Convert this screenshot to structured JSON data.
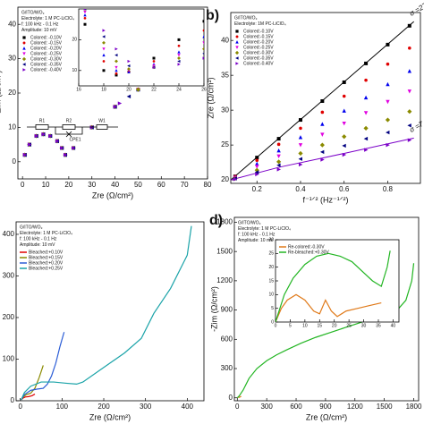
{
  "chart_data": [
    {
      "type": "scatter",
      "xlabel": "Zre (Ω/cm²)",
      "ylabel": "-Zim (Ω/cm²)",
      "xlim": [
        -2,
        80
      ],
      "xticks": [
        0,
        10,
        20,
        30,
        40,
        50,
        60,
        70,
        80
      ],
      "ylim": [
        -5,
        45
      ],
      "yticks": [
        0,
        10,
        20,
        30,
        40
      ],
      "notes": [
        "G/ITO/WO₃",
        "Electrolyte: 1 M PC-LiClO₄",
        "f: 100 kHz - 0.1 Hz",
        "Amplitude: 10 mV"
      ],
      "legend": "upper left",
      "circuit_labels": [
        "R1",
        "R2",
        "CPE1",
        "W1"
      ],
      "series": [
        {
          "name": "Colored: -0.10V",
          "color": "#000000",
          "marker": "square",
          "x": [
            1,
            3,
            6,
            9,
            12,
            15,
            17,
            18.5,
            22,
            30,
            40,
            50,
            60,
            70,
            75
          ],
          "values": [
            2,
            5,
            7.5,
            8,
            7.5,
            6,
            4,
            2,
            4,
            10,
            16,
            21,
            27,
            33,
            35
          ]
        },
        {
          "name": "Colored: -0.15V",
          "color": "#e00000",
          "marker": "circle",
          "x": [
            1,
            3,
            6,
            9,
            12,
            15,
            17,
            18.5,
            22,
            30,
            40,
            50,
            60,
            65
          ],
          "values": [
            2,
            5,
            7.5,
            8,
            7.5,
            6,
            4,
            2,
            4,
            10,
            16,
            21,
            27,
            30
          ]
        },
        {
          "name": "Colored: -0.20V",
          "color": "#0000ee",
          "marker": "triangle-up",
          "x": [
            1,
            3,
            6,
            9,
            12,
            15,
            17,
            18.5,
            22,
            30,
            40,
            50,
            60
          ],
          "values": [
            2,
            5,
            7.5,
            8,
            7.5,
            6,
            4,
            2,
            4,
            10,
            16,
            21,
            26
          ]
        },
        {
          "name": "Colored: -0.25V",
          "color": "#e000e0",
          "marker": "triangle-down",
          "x": [
            1,
            3,
            6,
            9,
            12,
            15,
            17,
            18.5,
            22,
            30,
            40,
            50,
            55
          ],
          "values": [
            2,
            5,
            7.5,
            8,
            7.5,
            6,
            4,
            2,
            4,
            10,
            16,
            21,
            24
          ]
        },
        {
          "name": "Colored: -0.30V",
          "color": "#8a8a00",
          "marker": "diamond",
          "x": [
            1,
            3,
            6,
            9,
            12,
            15,
            17,
            18.5,
            22,
            30,
            40,
            50
          ],
          "values": [
            2,
            5,
            7.5,
            8,
            7.5,
            6,
            4,
            2,
            4,
            10,
            16,
            21
          ]
        },
        {
          "name": "Colored: -0.35V",
          "color": "#000080",
          "marker": "triangle-left",
          "x": [
            1,
            3,
            6,
            9,
            12,
            15,
            17,
            18.5,
            22,
            30,
            40,
            46
          ],
          "values": [
            2,
            5,
            7.5,
            8,
            7.5,
            6,
            4,
            2,
            4,
            10,
            16,
            19
          ]
        },
        {
          "name": "Colored: -0.40V",
          "color": "#7b00c8",
          "marker": "triangle-right",
          "x": [
            1,
            3,
            6,
            9,
            12,
            15,
            17,
            18.5,
            22,
            30,
            40,
            42
          ],
          "values": [
            2,
            5,
            7.5,
            8,
            7.5,
            6,
            4,
            2,
            4,
            10,
            16,
            17
          ]
        }
      ],
      "inset": {
        "type": "scatter",
        "xlim": [
          16,
          26
        ],
        "xticks": [
          16,
          18,
          20,
          22,
          24,
          26
        ],
        "ylim": [
          5,
          30
        ],
        "yticks": [
          10,
          20
        ],
        "series": [
          {
            "color": "#000000",
            "marker": "square",
            "x": [
              16.5,
              18,
              19,
              20,
              22,
              24,
              26
            ],
            "values": [
              25,
              10,
              8.5,
              9.5,
              14,
              20,
              26
            ]
          },
          {
            "color": "#e00000",
            "marker": "circle",
            "x": [
              16.5,
              18,
              19,
              20,
              22,
              24,
              26
            ],
            "values": [
              27,
              13,
              9,
              9.5,
              13,
              18,
              23
            ]
          },
          {
            "color": "#0000ee",
            "marker": "triangle-up",
            "x": [
              16.5,
              18,
              19,
              20,
              22,
              24,
              26
            ],
            "values": [
              28,
              15,
              10,
              9.5,
              12,
              16,
              21
            ]
          },
          {
            "color": "#e000e0",
            "marker": "triangle-down",
            "x": [
              16.5,
              18,
              19,
              20,
              22,
              24,
              26
            ],
            "values": [
              29,
              17,
              11,
              10,
              11.5,
              15,
              19
            ]
          },
          {
            "color": "#8a8a00",
            "marker": "diamond",
            "x": [
              16.5,
              18,
              19,
              20,
              22,
              24,
              26
            ],
            "values": [
              30,
              19,
              13,
              10.5,
              11,
              14,
              17
            ]
          },
          {
            "color": "#000080",
            "marker": "triangle-left",
            "x": [
              16.5,
              18,
              19,
              20,
              22,
              24,
              26
            ],
            "values": [
              30,
              21,
              15,
              11.5,
              11,
              13,
              15.5
            ]
          },
          {
            "color": "#7b00c8",
            "marker": "triangle-right",
            "x": [
              16.5,
              18,
              19,
              20,
              22,
              24,
              26
            ],
            "values": [
              30,
              23,
              17,
              13,
              11,
              12,
              14
            ]
          }
        ]
      }
    },
    {
      "type": "scatter",
      "panel_label": "b)",
      "xlabel": "f⁻¹ᐟ² (Hz⁻¹ᐟ²)",
      "ylabel": "Zre (Ω/cm²)",
      "xlim": [
        0.08,
        0.95
      ],
      "xticks": [
        0.2,
        0.4,
        0.6,
        0.8
      ],
      "ylim": [
        19.5,
        44
      ],
      "yticks": [
        20,
        25,
        30,
        35,
        40
      ],
      "notes": [
        "G/ITO/WO₃",
        "Electrolyte: 1M PC-LiClO₄"
      ],
      "legend": "upper left",
      "series": [
        {
          "name": "Colored:-0.10V",
          "color": "#000000",
          "marker": "square",
          "x": [
            0.1,
            0.2,
            0.3,
            0.4,
            0.5,
            0.6,
            0.7,
            0.8,
            0.9
          ],
          "values": [
            20.5,
            23.2,
            25.9,
            28.6,
            31.3,
            34.0,
            36.7,
            39.4,
            42.1
          ]
        },
        {
          "name": "Colored:-0.15V",
          "color": "#e00000",
          "marker": "circle",
          "x": [
            0.1,
            0.2,
            0.3,
            0.4,
            0.5,
            0.6,
            0.7,
            0.8,
            0.9
          ],
          "values": [
            20.5,
            22.8,
            25.1,
            27.4,
            29.7,
            32.0,
            34.3,
            36.6,
            38.9
          ]
        },
        {
          "name": "Colored:-0.20V",
          "color": "#0000ee",
          "marker": "triangle-up",
          "x": [
            0.1,
            0.2,
            0.3,
            0.4,
            0.5,
            0.6,
            0.7,
            0.8,
            0.9
          ],
          "values": [
            20.4,
            22.3,
            24.2,
            26.1,
            28.0,
            29.9,
            31.8,
            33.7,
            35.6
          ]
        },
        {
          "name": "Colored:-0.25V",
          "color": "#e000e0",
          "marker": "triangle-down",
          "x": [
            0.1,
            0.2,
            0.3,
            0.4,
            0.5,
            0.6,
            0.7,
            0.8,
            0.9
          ],
          "values": [
            20.3,
            21.9,
            23.4,
            25.0,
            26.5,
            28.1,
            29.6,
            31.2,
            32.7
          ]
        },
        {
          "name": "Colored:-0.30V",
          "color": "#8a8a00",
          "marker": "diamond",
          "x": [
            0.1,
            0.2,
            0.3,
            0.4,
            0.5,
            0.6,
            0.7,
            0.8,
            0.9
          ],
          "values": [
            20.2,
            21.4,
            22.6,
            23.8,
            25.0,
            26.2,
            27.4,
            28.6,
            29.8
          ]
        },
        {
          "name": "Colored:-0.35V",
          "color": "#000080",
          "marker": "triangle-left",
          "x": [
            0.1,
            0.2,
            0.3,
            0.4,
            0.5,
            0.6,
            0.7,
            0.8,
            0.9
          ],
          "values": [
            20.2,
            21.1,
            22.1,
            23.0,
            24.0,
            24.9,
            25.9,
            26.8,
            27.8
          ]
        },
        {
          "name": "Colored:-0.40V",
          "color": "#7b00c8",
          "marker": "triangle-right",
          "x": [
            0.1,
            0.2,
            0.3,
            0.4,
            0.5,
            0.6,
            0.7,
            0.8,
            0.9
          ],
          "values": [
            20.1,
            20.8,
            21.5,
            22.2,
            22.9,
            23.6,
            24.3,
            25.0,
            25.7
          ]
        }
      ],
      "fits": [
        {
          "label": "σ =27",
          "color": "#000000",
          "x": [
            0.08,
            0.92
          ],
          "values": [
            20,
            42.7
          ]
        },
        {
          "label": "σ =7",
          "color": "#7b00c8",
          "x": [
            0.08,
            0.3,
            0.6,
            0.92
          ],
          "values": [
            20,
            21.8,
            23.8,
            26
          ]
        }
      ]
    },
    {
      "type": "line",
      "xlabel": "Zre (Ω/cm²)",
      "xlim": [
        -10,
        440
      ],
      "xticks": [
        0,
        100,
        200,
        300,
        400
      ],
      "ylim": [
        0,
        430
      ],
      "yticks": [
        0,
        100,
        200,
        300,
        400
      ],
      "notes": [
        "G/ITO/WO₃",
        "Electrolyte: 1 M PC-LiClO₄",
        "f: 100 kHz - 0.1 Hz",
        "Amplitude: 10 mV"
      ],
      "legend": "upper left",
      "series": [
        {
          "name": "Bleached:+0.10V",
          "color": "#e00000",
          "x": [
            2,
            6,
            12,
            20,
            28,
            35
          ],
          "values": [
            2,
            6,
            9,
            10,
            12,
            16
          ]
        },
        {
          "name": "Bleached:+0.15V",
          "color": "#8a8a00",
          "x": [
            2,
            8,
            15,
            25,
            35,
            45,
            55
          ],
          "values": [
            2,
            10,
            15,
            18,
            30,
            55,
            85
          ]
        },
        {
          "name": "Bleached:+0.20V",
          "color": "#2a5cd6",
          "x": [
            2,
            10,
            25,
            40,
            55,
            65,
            75,
            85,
            95,
            105
          ],
          "values": [
            2,
            15,
            25,
            28,
            30,
            40,
            60,
            90,
            130,
            165
          ]
        },
        {
          "name": "Bleached:+0.25V",
          "color": "#1aa3a8",
          "x": [
            2,
            10,
            25,
            50,
            80,
            110,
            135,
            150,
            200,
            250,
            290,
            320,
            360,
            400,
            410
          ],
          "values": [
            2,
            20,
            35,
            45,
            45,
            42,
            40,
            45,
            80,
            115,
            150,
            210,
            270,
            350,
            420
          ]
        }
      ]
    },
    {
      "type": "line",
      "panel_label": "d)",
      "xlabel": "Zre (Ω/cm²)",
      "ylabel": "-Zim (Ω/cm²)",
      "xlim": [
        -30,
        1850
      ],
      "xticks": [
        0,
        300,
        600,
        900,
        1200,
        1500,
        1800
      ],
      "ylim": [
        -30,
        1850
      ],
      "yticks": [
        0,
        300,
        600,
        900,
        1200,
        1500,
        1800
      ],
      "notes": [
        "G/ITO/WO₃",
        "Electrolyte: 1 M PC-LiClO₄",
        "f: 100 kHz - 0.1 Hz",
        "Amplitude: 10 mV"
      ],
      "series": [
        {
          "color": "#e07a1a",
          "x": [
            0,
            10,
            20,
            30,
            40
          ],
          "values": [
            0,
            8,
            5,
            10,
            15
          ]
        },
        {
          "color": "#22b522",
          "x": [
            0,
            20,
            60,
            120,
            200,
            300,
            400,
            500,
            650,
            800,
            950,
            1100,
            1250,
            1400,
            1550,
            1650,
            1720,
            1780,
            1800
          ],
          "values": [
            0,
            20,
            80,
            200,
            300,
            380,
            440,
            490,
            560,
            620,
            670,
            720,
            770,
            820,
            880,
            920,
            1000,
            1200,
            1380
          ]
        }
      ],
      "inset": {
        "type": "line",
        "xlim": [
          0,
          42
        ],
        "xticks": [
          0,
          5,
          10,
          15,
          20,
          25,
          30,
          35,
          40
        ],
        "ylim": [
          0,
          30
        ],
        "yticks": [
          0,
          5,
          10,
          15,
          20,
          25,
          30
        ],
        "legend": "upper left",
        "series": [
          {
            "name": "Re-colored:-0.30V",
            "color": "#e07a1a",
            "x": [
              0,
              2,
              4,
              7,
              10,
              13,
              15,
              17,
              19,
              21,
              24,
              28,
              32,
              36
            ],
            "values": [
              0,
              5,
              8,
              10,
              8,
              4,
              3,
              8,
              4,
              2,
              4,
              5,
              6,
              7
            ]
          },
          {
            "name": "Re-bleached:+0.30V",
            "color": "#22b522",
            "x": [
              0,
              3,
              6,
              10,
              14,
              18,
              22,
              26,
              30,
              33,
              36,
              38,
              39
            ],
            "values": [
              0,
              10,
              16,
              21,
              24,
              25,
              24,
              22,
              18,
              15,
              13,
              20,
              26
            ]
          }
        ]
      }
    }
  ]
}
